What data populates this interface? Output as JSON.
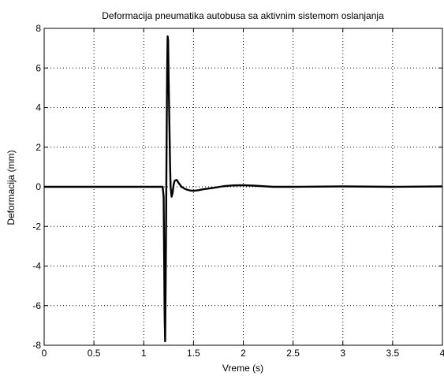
{
  "chart_data": {
    "type": "line",
    "title": "Deformacija pneumatika autobusa sa aktivnim sistemom oslanjanja",
    "xlabel": "Vreme (s)",
    "ylabel": "Deformacija (mm)",
    "xlim": [
      0,
      4
    ],
    "ylim": [
      -8,
      8
    ],
    "xticks": [
      0,
      0.5,
      1,
      1.5,
      2,
      2.5,
      3,
      3.5,
      4
    ],
    "xtick_labels": [
      "0",
      "0.5",
      "1",
      "1.5",
      "2",
      "2.5",
      "3",
      "3.5",
      "4"
    ],
    "yticks": [
      -8,
      -6,
      -4,
      -2,
      0,
      2,
      4,
      6,
      8
    ],
    "ytick_labels": [
      "-8",
      "-6",
      "-4",
      "-2",
      "0",
      "2",
      "4",
      "6",
      "8"
    ],
    "grid": true,
    "series": [
      {
        "color": "#000000",
        "x": [
          0,
          1.19,
          1.2,
          1.205,
          1.21,
          1.215,
          1.22,
          1.225,
          1.23,
          1.235,
          1.24,
          1.245,
          1.25,
          1.26,
          1.265,
          1.27,
          1.28,
          1.29,
          1.3,
          1.31,
          1.33,
          1.35,
          1.38,
          1.42,
          1.46,
          1.5,
          1.55,
          1.6,
          1.7,
          1.8,
          1.9,
          2.0,
          2.1,
          2.2,
          2.3,
          2.5,
          3.0,
          3.5,
          4.0
        ],
        "y": [
          0,
          0,
          -0.5,
          -3.5,
          -6.5,
          -7.8,
          -5.0,
          -1.5,
          2.5,
          5.8,
          7.6,
          7.4,
          5.5,
          2.5,
          1.0,
          0.0,
          -0.5,
          -0.3,
          0.1,
          0.3,
          0.35,
          0.2,
          0.0,
          -0.12,
          -0.18,
          -0.2,
          -0.17,
          -0.12,
          -0.05,
          0.03,
          0.07,
          0.08,
          0.06,
          0.03,
          0.0,
          0.0,
          0.02,
          0.0,
          0.02
        ]
      }
    ]
  }
}
